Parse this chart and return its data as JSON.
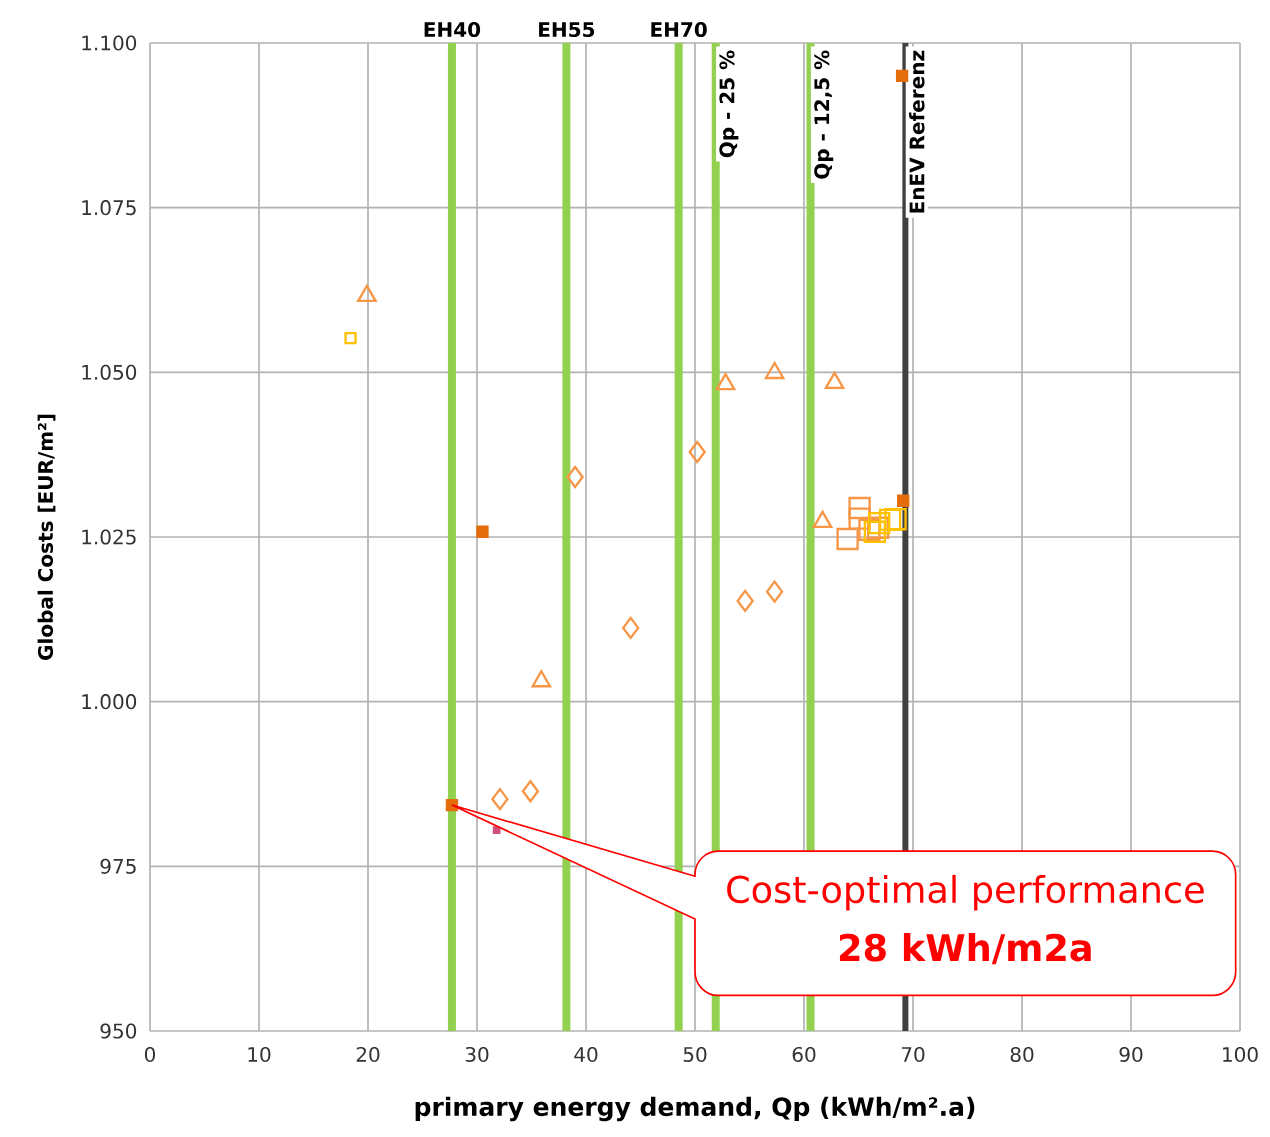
{
  "chart_data": {
    "type": "scatter",
    "xlabel": "primary energy demand, Qp (kWh/m².a)",
    "ylabel": "Global Costs [EUR/m²]",
    "xlim": [
      0,
      100
    ],
    "xticks": [
      0,
      10,
      20,
      30,
      40,
      50,
      60,
      70,
      80,
      90,
      100
    ],
    "ylim": [
      950,
      1100
    ],
    "yticks": [
      {
        "value": 950,
        "label": "950"
      },
      {
        "value": 975,
        "label": "975"
      },
      {
        "value": 1000,
        "label": "1.000"
      },
      {
        "value": 1025,
        "label": "1.025"
      },
      {
        "value": 1050,
        "label": "1.050"
      },
      {
        "value": 1075,
        "label": "1.075"
      },
      {
        "value": 1100,
        "label": "1.100"
      }
    ],
    "grid": true,
    "series": [
      {
        "color": "#f79646",
        "marker": "triangle",
        "x": [
          19.9,
          35.9,
          52.8,
          57.3,
          62.8,
          61.7
        ],
        "values": [
          1061.6,
          1003.1,
          1048.2,
          1049.9,
          1048.4,
          1027.3
        ]
      },
      {
        "color": "#f79646",
        "marker": "diamond",
        "x": [
          39.0,
          50.2,
          44.1,
          54.6,
          57.3,
          32.1,
          34.9
        ],
        "values": [
          1034.1,
          1037.9,
          1011.2,
          1015.3,
          1016.7,
          985.2,
          986.4
        ]
      },
      {
        "color": "#f79646",
        "marker": "square",
        "x": [
          65.1,
          65.1,
          64.0,
          66.0,
          66.8
        ],
        "values": [
          1029.4,
          1027.8,
          1024.7,
          1026.1,
          1026.4
        ]
      },
      {
        "color": "#ffc000",
        "marker": "square",
        "x": [
          66.5,
          66.9,
          67.9,
          68.4
        ],
        "values": [
          1025.8,
          1027.1,
          1027.6,
          1027.7
        ]
      },
      {
        "color": "#ffc000",
        "marker": "square",
        "x": [
          18.4
        ],
        "values": [
          1055.2
        ]
      },
      {
        "color": "#e46c0a",
        "marker": "square",
        "x": [
          30.5,
          27.7,
          69.1,
          69.0
        ],
        "values": [
          1025.8,
          984.3,
          1030.5,
          1095.0
        ]
      },
      {
        "color": "#d0507a",
        "marker": "square",
        "x": [
          31.8
        ],
        "values": [
          980.5
        ]
      }
    ],
    "ref_lines": [
      {
        "axis": "x",
        "value": 27.7,
        "label": "EH40",
        "color": "#92d050"
      },
      {
        "axis": "x",
        "value": 38.2,
        "label": "EH55",
        "color": "#92d050"
      },
      {
        "axis": "x",
        "value": 48.5,
        "label": "EH70",
        "color": "#92d050"
      },
      {
        "axis": "x",
        "value": 51.9,
        "label": "Qp - 25 %",
        "color": "#92d050"
      },
      {
        "axis": "x",
        "value": 60.6,
        "label": "Qp - 12,5 %",
        "color": "#92d050"
      },
      {
        "axis": "x",
        "value": 69.3,
        "label": "EnEV Referenz",
        "color": "#404040"
      }
    ],
    "annotations": [
      "Cost-optimal performance",
      "28 kWh/m2a"
    ]
  }
}
